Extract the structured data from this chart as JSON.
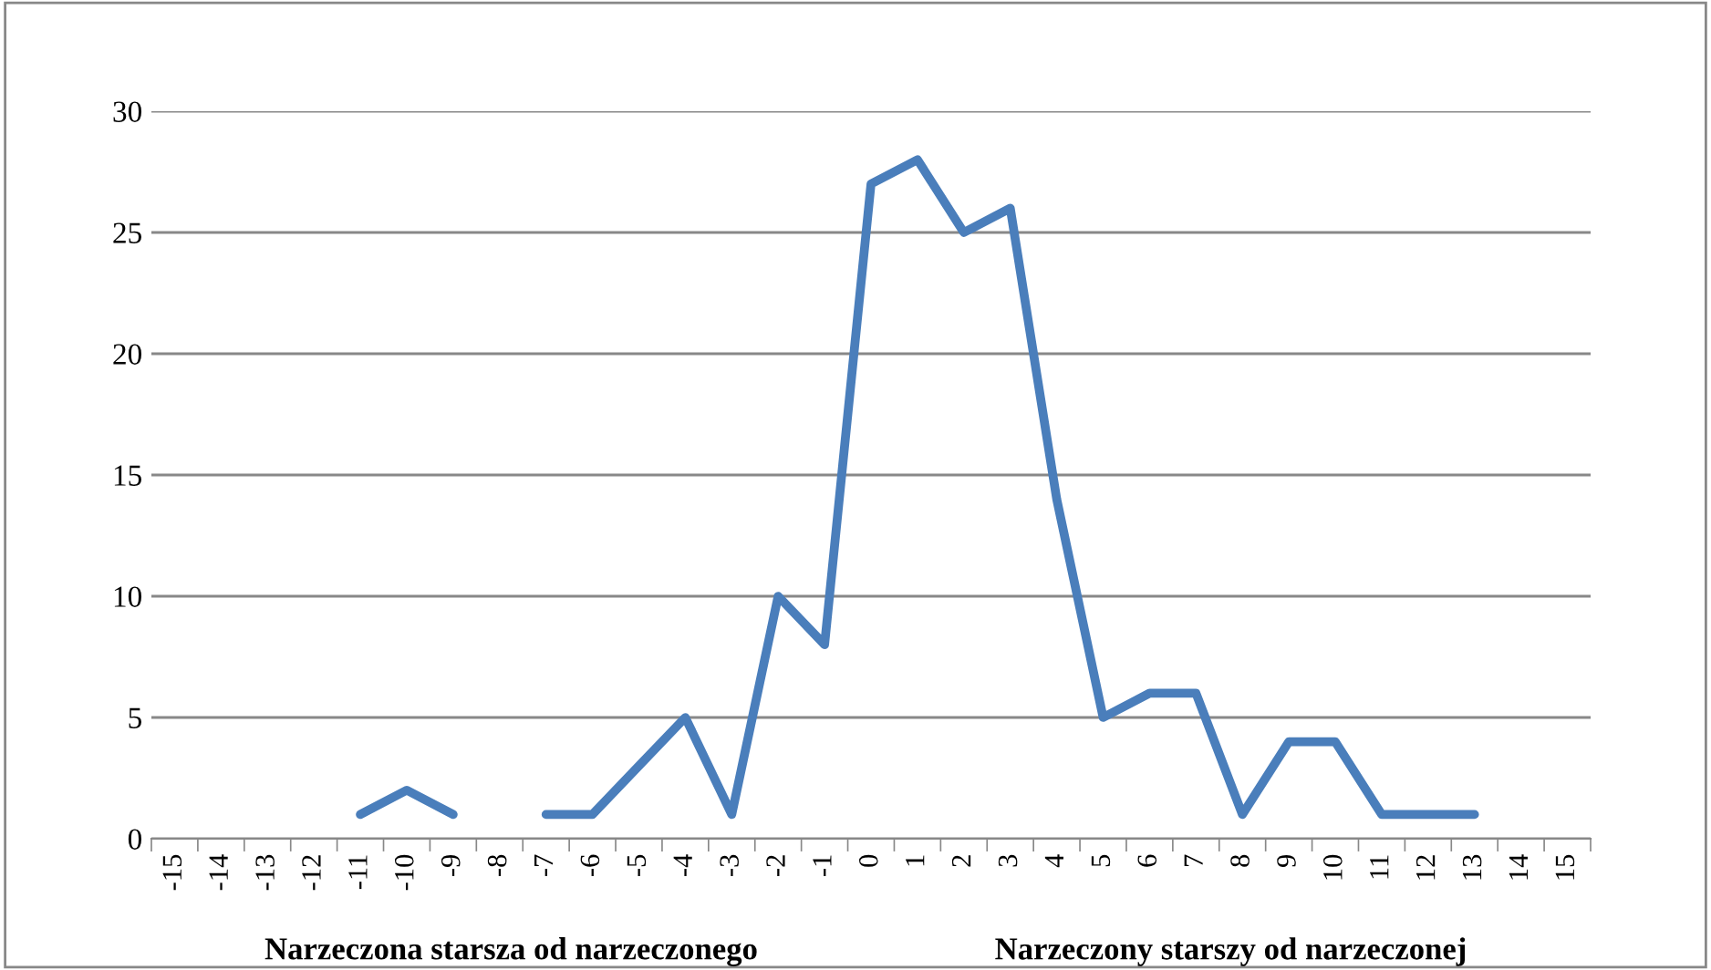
{
  "chart_data": {
    "type": "line",
    "categories": [
      "-15",
      "-14",
      "-13",
      "-12",
      "-11",
      "-10",
      "-9",
      "-8",
      "-7",
      "-6",
      "-5",
      "-4",
      "-3",
      "-2",
      "-1",
      "0",
      "1",
      "2",
      "3",
      "4",
      "5",
      "6",
      "7",
      "8",
      "9",
      "10",
      "11",
      "12",
      "13",
      "14",
      "15"
    ],
    "series": [
      {
        "color": "#4a7ebb",
        "values": [
          null,
          null,
          null,
          null,
          1,
          2,
          1,
          null,
          1,
          1,
          3,
          5,
          1,
          10,
          8,
          27,
          28,
          25,
          26,
          14,
          5,
          6,
          6,
          1,
          4,
          4,
          1,
          1,
          1,
          null,
          null
        ]
      }
    ],
    "ylim": [
      0,
      30
    ],
    "yticks": [
      0,
      5,
      10,
      15,
      20,
      25,
      30
    ],
    "grid": "y",
    "line_style": "solid",
    "marker": "none",
    "annotations": [
      "Narzeczona starsza od narzeczonego",
      "Narzeczony starszy od narzeczonej"
    ]
  }
}
